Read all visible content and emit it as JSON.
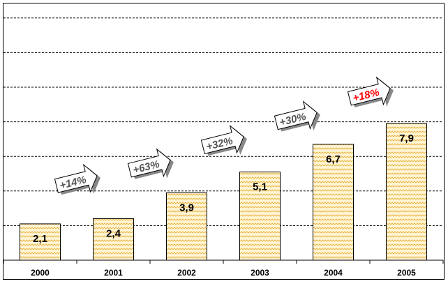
{
  "chart_data": {
    "type": "bar",
    "categories": [
      "2000",
      "2001",
      "2002",
      "2003",
      "2004",
      "2005"
    ],
    "values": [
      2.1,
      2.4,
      3.9,
      5.1,
      6.7,
      7.9
    ],
    "data_labels": [
      "2,1",
      "2,4",
      "3,9",
      "5,1",
      "6,7",
      "7,9"
    ],
    "growth_annotations": [
      {
        "text": "+14%",
        "highlight": false
      },
      {
        "text": "+63%",
        "highlight": false
      },
      {
        "text": "+32%",
        "highlight": false
      },
      {
        "text": "+30%",
        "highlight": false
      },
      {
        "text": "+18%",
        "highlight": true
      }
    ],
    "ylim": [
      0,
      14
    ],
    "grid": true,
    "legend": "none",
    "bar_fill_color": "#fff5d6",
    "bar_pattern_color": "#e8b84a",
    "arrow_text_color": "#555555",
    "highlight_color": "#ff0000"
  }
}
